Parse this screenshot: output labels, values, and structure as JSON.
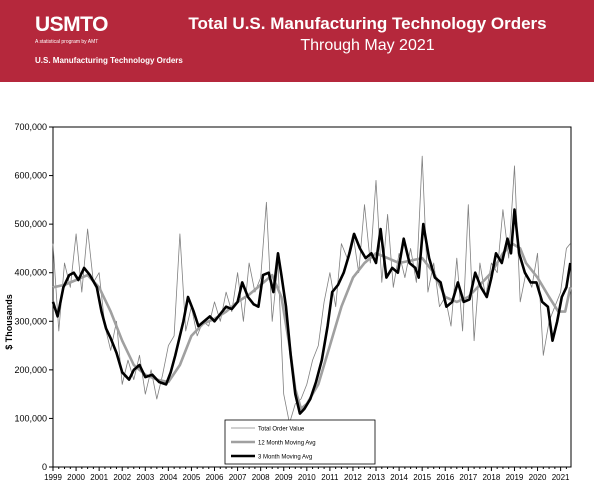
{
  "header": {
    "logo": "USMTO",
    "logo_tagline": "A statistical program by AMT",
    "logo_subtitle": "U.S. Manufacturing Technology Orders",
    "title": "Total U.S. Manufacturing Technology Orders",
    "subtitle": "Through May 2021"
  },
  "colors": {
    "header_bg": "#b5283c",
    "total_order_value": "#808080",
    "ma12": "#a0a0a0",
    "ma3": "#000000"
  },
  "chart_data": {
    "type": "line",
    "title": "Total U.S. Manufacturing Technology Orders",
    "subtitle": "Through May 2021",
    "xlabel": "",
    "ylabel": "$ Thousands",
    "ylim": [
      0,
      700000
    ],
    "xlim": [
      1999.0,
      2021.45
    ],
    "grid": false,
    "legend_position": "bottom-center",
    "y_ticks": [
      0,
      100000,
      200000,
      300000,
      400000,
      500000,
      600000,
      700000
    ],
    "y_tick_labels": [
      "0",
      "100,000",
      "200,000",
      "300,000",
      "400,000",
      "500,000",
      "600,000",
      "700,000"
    ],
    "x_ticks": [
      1999,
      2000,
      2001,
      2002,
      2003,
      2004,
      2005,
      2006,
      2007,
      2008,
      2009,
      2010,
      2011,
      2012,
      2013,
      2014,
      2015,
      2016,
      2017,
      2018,
      2019,
      2020,
      2021
    ],
    "x_tick_labels": [
      "1999",
      "2000",
      "2001",
      "2002",
      "2003",
      "2004",
      "2005",
      "2006",
      "2007",
      "2008",
      "2009",
      "2010",
      "2011",
      "2012",
      "2013",
      "2014",
      "2015",
      "2016",
      "2017",
      "2018",
      "2019",
      "2020",
      "2021"
    ],
    "series": [
      {
        "name": "Total Order Value",
        "style": "thin",
        "x": [
          1999.0,
          1999.25,
          1999.5,
          1999.75,
          2000.0,
          2000.25,
          2000.5,
          2000.75,
          2001.0,
          2001.25,
          2001.5,
          2001.75,
          2002.0,
          2002.25,
          2002.5,
          2002.75,
          2003.0,
          2003.25,
          2003.5,
          2003.75,
          2004.0,
          2004.25,
          2004.5,
          2004.75,
          2005.0,
          2005.25,
          2005.5,
          2005.75,
          2006.0,
          2006.25,
          2006.5,
          2006.75,
          2007.0,
          2007.25,
          2007.5,
          2007.75,
          2008.0,
          2008.25,
          2008.5,
          2008.75,
          2009.0,
          2009.25,
          2009.5,
          2009.75,
          2010.0,
          2010.25,
          2010.5,
          2010.75,
          2011.0,
          2011.25,
          2011.5,
          2011.75,
          2012.0,
          2012.25,
          2012.5,
          2012.75,
          2013.0,
          2013.25,
          2013.5,
          2013.75,
          2014.0,
          2014.25,
          2014.5,
          2014.75,
          2015.0,
          2015.25,
          2015.5,
          2015.75,
          2016.0,
          2016.25,
          2016.5,
          2016.75,
          2017.0,
          2017.25,
          2017.5,
          2017.75,
          2018.0,
          2018.25,
          2018.5,
          2018.75,
          2019.0,
          2019.25,
          2019.5,
          2019.75,
          2020.0,
          2020.25,
          2020.5,
          2020.75,
          2021.0,
          2021.25,
          2021.42
        ],
        "y": [
          460000,
          280000,
          420000,
          370000,
          480000,
          360000,
          490000,
          380000,
          400000,
          290000,
          240000,
          300000,
          170000,
          220000,
          180000,
          230000,
          150000,
          200000,
          140000,
          190000,
          250000,
          270000,
          480000,
          280000,
          330000,
          270000,
          300000,
          290000,
          340000,
          300000,
          360000,
          320000,
          400000,
          300000,
          420000,
          360000,
          390000,
          545000,
          300000,
          420000,
          150000,
          90000,
          130000,
          140000,
          170000,
          220000,
          250000,
          340000,
          400000,
          330000,
          460000,
          430000,
          480000,
          400000,
          540000,
          420000,
          590000,
          380000,
          520000,
          370000,
          440000,
          390000,
          450000,
          380000,
          640000,
          360000,
          420000,
          330000,
          350000,
          290000,
          430000,
          280000,
          540000,
          260000,
          420000,
          350000,
          420000,
          400000,
          530000,
          430000,
          620000,
          340000,
          400000,
          370000,
          440000,
          230000,
          300000,
          330000,
          360000,
          450000,
          460000
        ]
      },
      {
        "name": "12 Month Moving Avg",
        "style": "medium",
        "x": [
          1999.0,
          1999.5,
          2000.0,
          2000.5,
          2001.0,
          2001.5,
          2002.0,
          2002.5,
          2003.0,
          2003.5,
          2004.0,
          2004.5,
          2005.0,
          2005.5,
          2006.0,
          2006.5,
          2007.0,
          2007.5,
          2008.0,
          2008.5,
          2008.9,
          2009.25,
          2009.5,
          2009.75,
          2010.0,
          2010.5,
          2011.0,
          2011.5,
          2012.0,
          2012.5,
          2013.0,
          2013.5,
          2014.0,
          2014.5,
          2015.0,
          2015.5,
          2016.0,
          2016.5,
          2017.0,
          2017.5,
          2018.0,
          2018.5,
          2018.9,
          2019.25,
          2019.5,
          2020.0,
          2020.5,
          2020.9,
          2021.2,
          2021.42
        ],
        "y": [
          370000,
          375000,
          385000,
          395000,
          370000,
          320000,
          260000,
          210000,
          190000,
          180000,
          175000,
          210000,
          270000,
          295000,
          305000,
          320000,
          340000,
          355000,
          375000,
          395000,
          350000,
          250000,
          160000,
          120000,
          130000,
          170000,
          250000,
          330000,
          390000,
          420000,
          440000,
          430000,
          420000,
          425000,
          430000,
          400000,
          350000,
          340000,
          350000,
          375000,
          400000,
          440000,
          460000,
          450000,
          420000,
          390000,
          350000,
          320000,
          320000,
          370000
        ]
      },
      {
        "name": "3 Month Moving Avg",
        "style": "thick",
        "x": [
          1999.0,
          1999.2,
          1999.45,
          1999.7,
          1999.9,
          2000.1,
          2000.35,
          2000.6,
          2000.9,
          2001.1,
          2001.3,
          2001.5,
          2001.75,
          2002.0,
          2002.3,
          2002.5,
          2002.75,
          2003.0,
          2003.3,
          2003.6,
          2003.9,
          2004.1,
          2004.3,
          2004.5,
          2004.65,
          2004.85,
          2005.1,
          2005.3,
          2005.55,
          2005.8,
          2006.0,
          2006.25,
          2006.5,
          2006.75,
          2007.0,
          2007.2,
          2007.45,
          2007.7,
          2007.9,
          2008.1,
          2008.35,
          2008.55,
          2008.75,
          2008.9,
          2009.1,
          2009.3,
          2009.5,
          2009.7,
          2009.9,
          2010.15,
          2010.4,
          2010.65,
          2010.9,
          2011.1,
          2011.35,
          2011.6,
          2011.85,
          2012.05,
          2012.3,
          2012.55,
          2012.8,
          2013.0,
          2013.2,
          2013.45,
          2013.7,
          2013.95,
          2014.2,
          2014.45,
          2014.7,
          2014.85,
          2015.05,
          2015.3,
          2015.55,
          2015.8,
          2016.05,
          2016.3,
          2016.55,
          2016.8,
          2017.05,
          2017.3,
          2017.55,
          2017.8,
          2018.0,
          2018.2,
          2018.45,
          2018.7,
          2018.85,
          2019.0,
          2019.2,
          2019.45,
          2019.7,
          2019.95,
          2020.2,
          2020.45,
          2020.65,
          2020.85,
          2021.05,
          2021.25,
          2021.42
        ],
        "y": [
          340000,
          310000,
          370000,
          395000,
          400000,
          385000,
          410000,
          395000,
          370000,
          320000,
          285000,
          265000,
          235000,
          195000,
          180000,
          200000,
          210000,
          185000,
          190000,
          175000,
          170000,
          195000,
          230000,
          270000,
          300000,
          350000,
          320000,
          290000,
          300000,
          310000,
          300000,
          315000,
          330000,
          325000,
          340000,
          380000,
          350000,
          335000,
          330000,
          395000,
          400000,
          360000,
          440000,
          395000,
          330000,
          230000,
          150000,
          110000,
          120000,
          140000,
          175000,
          220000,
          290000,
          360000,
          375000,
          400000,
          440000,
          480000,
          450000,
          430000,
          440000,
          420000,
          490000,
          390000,
          410000,
          400000,
          470000,
          420000,
          410000,
          390000,
          500000,
          430000,
          390000,
          380000,
          330000,
          340000,
          380000,
          340000,
          345000,
          400000,
          370000,
          350000,
          390000,
          440000,
          420000,
          470000,
          440000,
          530000,
          440000,
          400000,
          380000,
          380000,
          340000,
          330000,
          260000,
          300000,
          350000,
          370000,
          420000
        ]
      }
    ]
  }
}
